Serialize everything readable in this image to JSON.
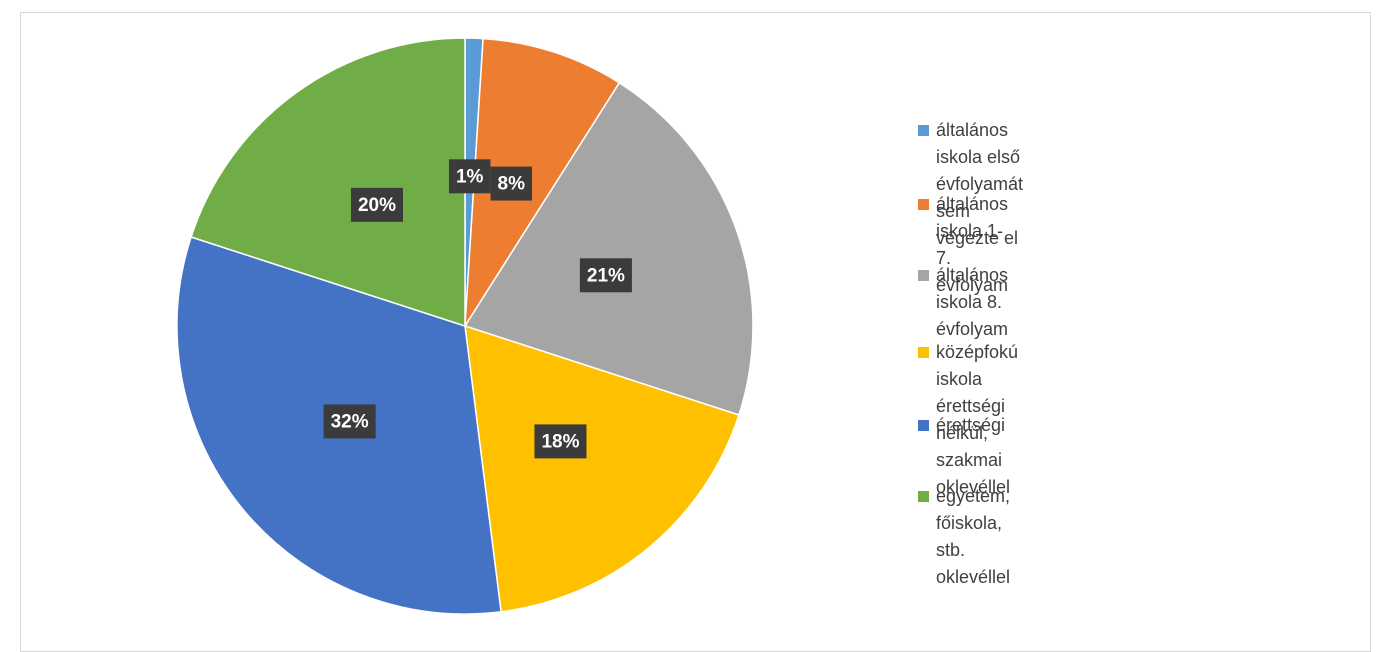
{
  "chart_data": {
    "type": "pie",
    "categories": [
      "általános iskola első évfolyamát sem végezte el",
      "általános iskola 1-7. évfolyam",
      "általános iskola 8. évfolyam",
      "középfokú iskola érettségi nélkül, szakmai oklevéllel",
      "érettségi",
      "egyetem, főiskola, stb. oklevéllel"
    ],
    "values": [
      1,
      8,
      21,
      18,
      32,
      20
    ],
    "value_labels": [
      "1%",
      "8%",
      "21%",
      "18%",
      "32%",
      "20%"
    ],
    "colors": [
      "#5b9bd5",
      "#ed7d31",
      "#a5a5a5",
      "#ffc000",
      "#4472c4",
      "#70ad47"
    ],
    "legend": "right"
  }
}
